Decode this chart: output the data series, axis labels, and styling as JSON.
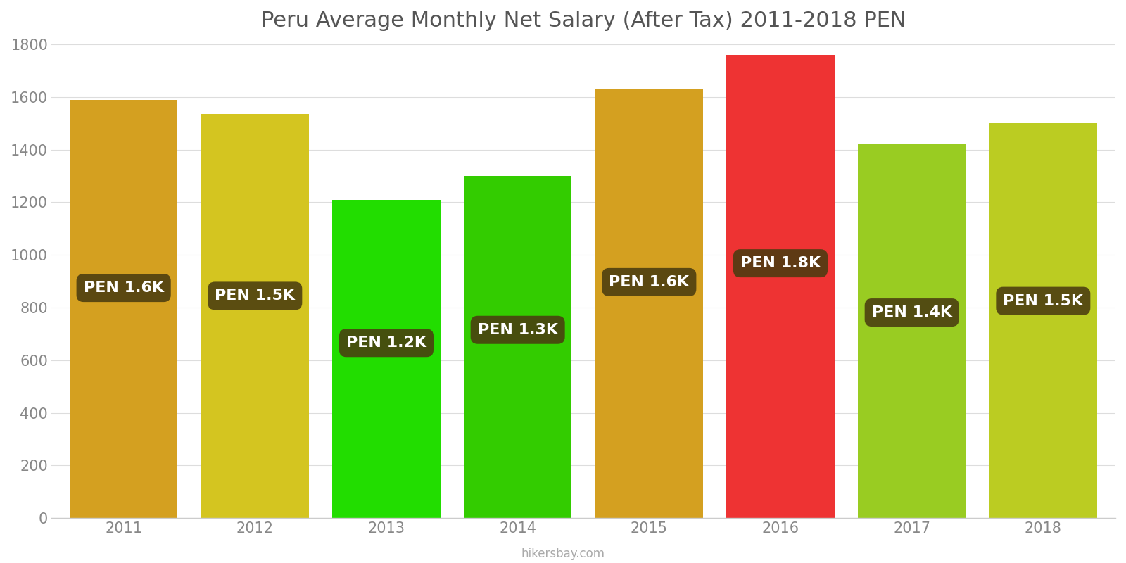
{
  "title": "Peru Average Monthly Net Salary (After Tax) 2011-2018 PEN",
  "years": [
    2011,
    2012,
    2013,
    2014,
    2015,
    2016,
    2017,
    2018
  ],
  "values": [
    1590,
    1535,
    1210,
    1300,
    1630,
    1760,
    1420,
    1500
  ],
  "labels": [
    "PEN 1.6K",
    "PEN 1.5K",
    "PEN 1.2K",
    "PEN 1.3K",
    "PEN 1.6K",
    "PEN 1.8K",
    "PEN 1.4K",
    "PEN 1.5K"
  ],
  "bar_colors": [
    "#D4A020",
    "#D4C520",
    "#22DD00",
    "#33CC00",
    "#D4A020",
    "#EE3333",
    "#99CC22",
    "#BBCC22"
  ],
  "ylim": [
    0,
    1800
  ],
  "yticks": [
    0,
    200,
    400,
    600,
    800,
    1000,
    1200,
    1400,
    1600,
    1800
  ],
  "label_box_color": "#4A3C10",
  "label_text_color": "#FFFFFF",
  "footer_text": "hikersbay.com",
  "background_color": "#FFFFFF",
  "title_fontsize": 22,
  "tick_fontsize": 15,
  "label_fontsize": 16,
  "bar_width": 0.82
}
